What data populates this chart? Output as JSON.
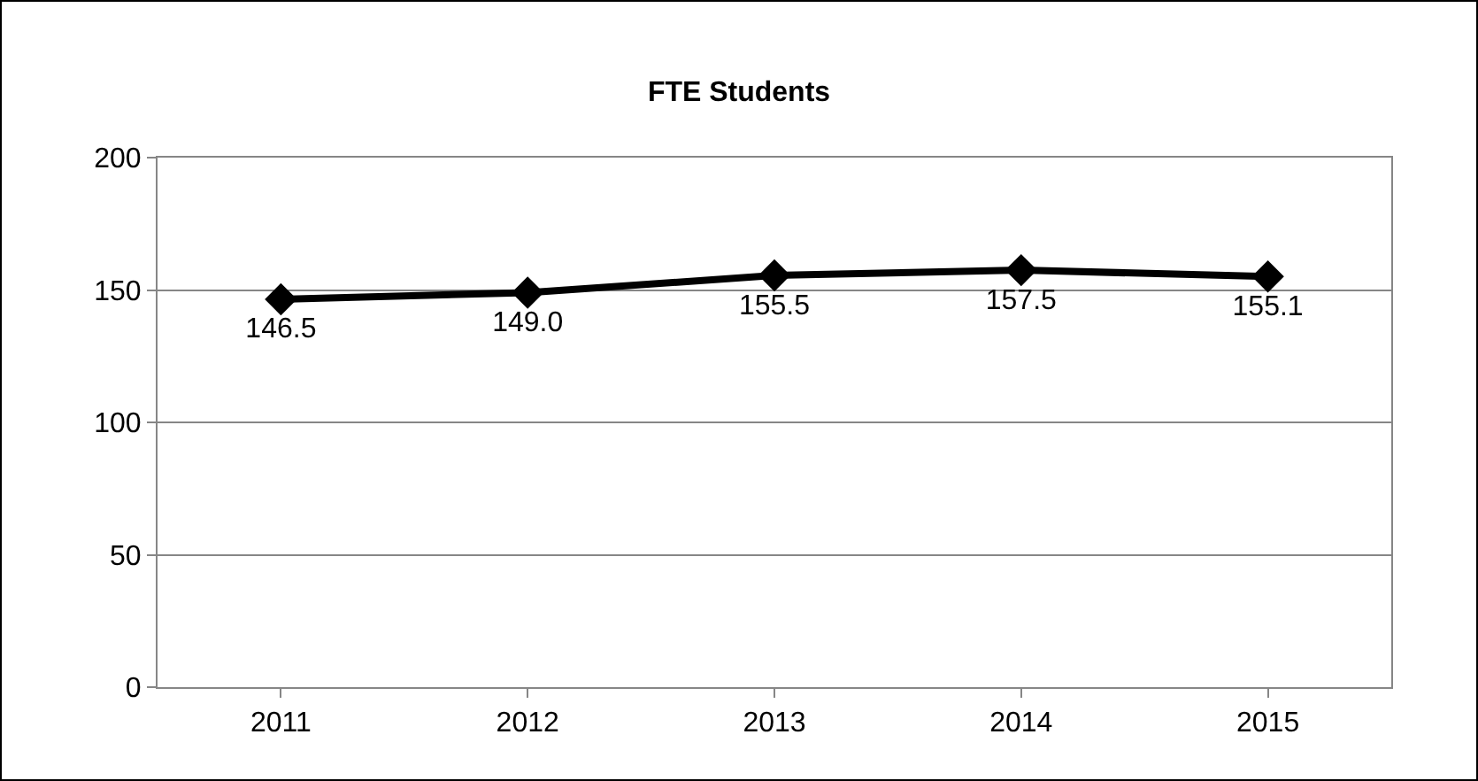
{
  "chart_data": {
    "type": "line",
    "title": "FTE Students",
    "categories": [
      "2011",
      "2012",
      "2013",
      "2014",
      "2015"
    ],
    "series": [
      {
        "color": "#000000",
        "values": [
          146.5,
          149.0,
          155.5,
          157.5,
          155.1
        ],
        "value_labels": [
          "146.5",
          "149.0",
          "155.5",
          "157.5",
          "155.1"
        ]
      }
    ],
    "ylim": [
      0,
      200
    ],
    "yticks": [
      0,
      50,
      100,
      150,
      200
    ],
    "grid": "y",
    "marker": "diamond",
    "line_style": "solid"
  }
}
